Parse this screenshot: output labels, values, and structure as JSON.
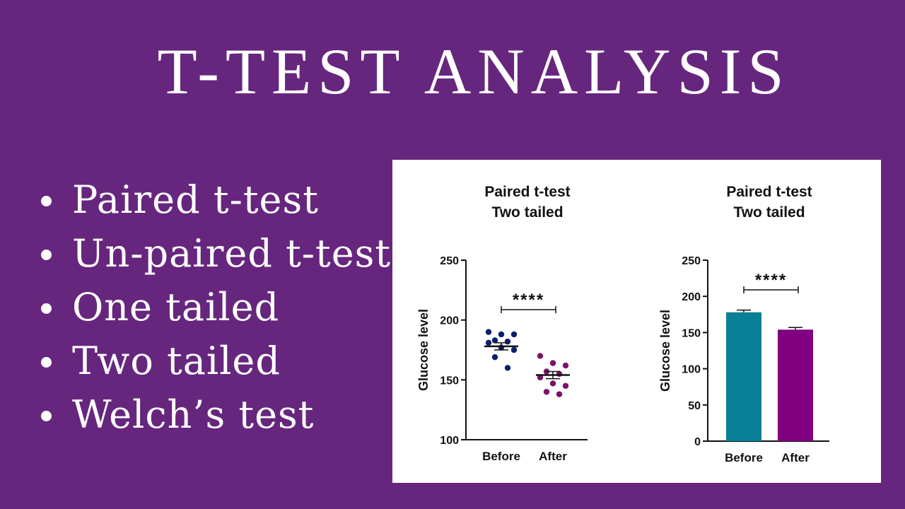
{
  "title": "T-TEST ANALYSIS",
  "bullets": [
    "Paired t-test",
    "Un-paired t-test",
    "One tailed",
    "Two tailed",
    "Welch’s test"
  ],
  "colors": {
    "background": "#66267e",
    "before_dots": "#0b1f6e",
    "after_dots": "#7b1268",
    "bar_before": "#0a8098",
    "bar_after": "#800080"
  },
  "chart_data": [
    {
      "type": "scatter",
      "title_lines": [
        "Paired t-test",
        "Two tailed"
      ],
      "ylabel": "Glucose level",
      "ylim": [
        100,
        250
      ],
      "yticks": [
        100,
        150,
        200,
        250
      ],
      "categories": [
        "Before",
        "After"
      ],
      "significance": "****",
      "series": [
        {
          "category": "Before",
          "mean": 178,
          "sem": 3,
          "points": [
            190,
            188,
            188,
            183,
            182,
            181,
            177,
            175,
            169,
            160
          ]
        },
        {
          "category": "After",
          "mean": 154,
          "sem": 3,
          "points": [
            170,
            164,
            162,
            157,
            155,
            152,
            147,
            145,
            140,
            138
          ]
        }
      ]
    },
    {
      "type": "bar",
      "title_lines": [
        "Paired t-test",
        "Two tailed"
      ],
      "ylabel": "Glucose level",
      "ylim": [
        0,
        250
      ],
      "yticks": [
        0,
        50,
        100,
        150,
        200,
        250
      ],
      "categories": [
        "Before",
        "After"
      ],
      "values": [
        178,
        154
      ],
      "errors": [
        3,
        3
      ],
      "significance": "****"
    }
  ]
}
